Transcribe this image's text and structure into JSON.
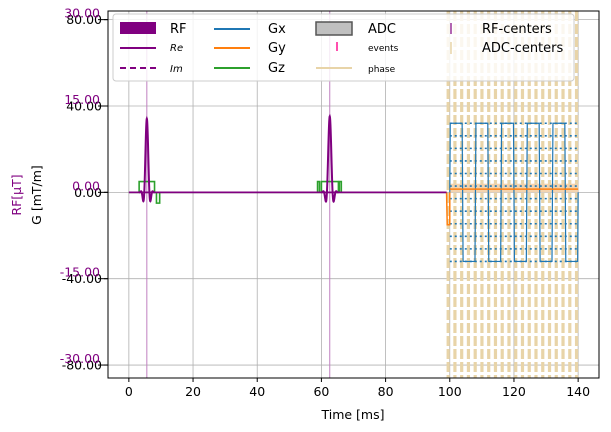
{
  "chart_data": {
    "type": "line",
    "xlabel": "Time [ms]",
    "ylabel_left_rf": "RF[μT]",
    "ylabel_left_g": "G [mT/m]",
    "xlim": [
      -6.5,
      146.5
    ],
    "xticks": [
      0,
      20,
      40,
      60,
      80,
      100,
      120,
      140
    ],
    "g_ylim": [
      -86,
      84
    ],
    "g_ticks": [
      -80,
      -40,
      0,
      40,
      80
    ],
    "g_tick_labels": [
      "-80.00",
      "-40.00",
      "0.00",
      "40.00",
      "80.00"
    ],
    "rf_ticks": [
      -30,
      -15,
      0,
      15,
      30
    ],
    "rf_tick_labels": [
      "-30.00",
      "-15.00",
      "0.00",
      "15.00",
      "30.00"
    ],
    "rf_ylim": [
      -32.25,
      31.5
    ],
    "grid": true,
    "legend_position": "top",
    "legend": {
      "col1": [
        "RF",
        "Re",
        "Im"
      ],
      "col2": [
        "Gx",
        "Gy",
        "Gz"
      ],
      "col3": [
        "ADC",
        "events",
        "phase"
      ],
      "col4": [
        "RF-centers",
        "ADC-centers"
      ]
    },
    "colors": {
      "rf": "#800080",
      "gx": "#1f77b4",
      "gy": "#ff7f0e",
      "gz": "#2ca02c",
      "adc_fill": "#c0c0c0",
      "events": "#ff1493",
      "phase": "#e8d4a8",
      "rf_center": "#c080c0",
      "adc_center": "#e8d4a8",
      "tick_magenta": "#800080"
    },
    "rf_pulses": [
      {
        "center": 5.6,
        "start": 3.2,
        "end": 8.0,
        "peak_uT": 12.8
      },
      {
        "center": 62.6,
        "start": 60.0,
        "end": 65.3,
        "peak_uT": 13.2
      }
    ],
    "rf_centers": [
      5.6,
      62.6
    ],
    "gz_pulses": [
      {
        "start": 3.2,
        "end": 8.0,
        "amp": 5
      },
      {
        "start": 8.6,
        "end": 9.6,
        "amp": -5
      },
      {
        "start": 58.8,
        "end": 59.4,
        "amp": 5
      },
      {
        "start": 60.0,
        "end": 65.3,
        "amp": 5
      },
      {
        "start": 65.6,
        "end": 66.2,
        "amp": 5
      }
    ],
    "gy_pre": {
      "start": 99.0,
      "end": 100.0,
      "amp": -15
    },
    "readout": {
      "start": 100.0,
      "end": 140.0,
      "lines": 10,
      "gx_amp": 32,
      "adc_amp": 4,
      "gy_level": 1.5
    },
    "adc_centers_range": [
      99.5,
      139.5
    ],
    "adc_centers_count": 20
  }
}
